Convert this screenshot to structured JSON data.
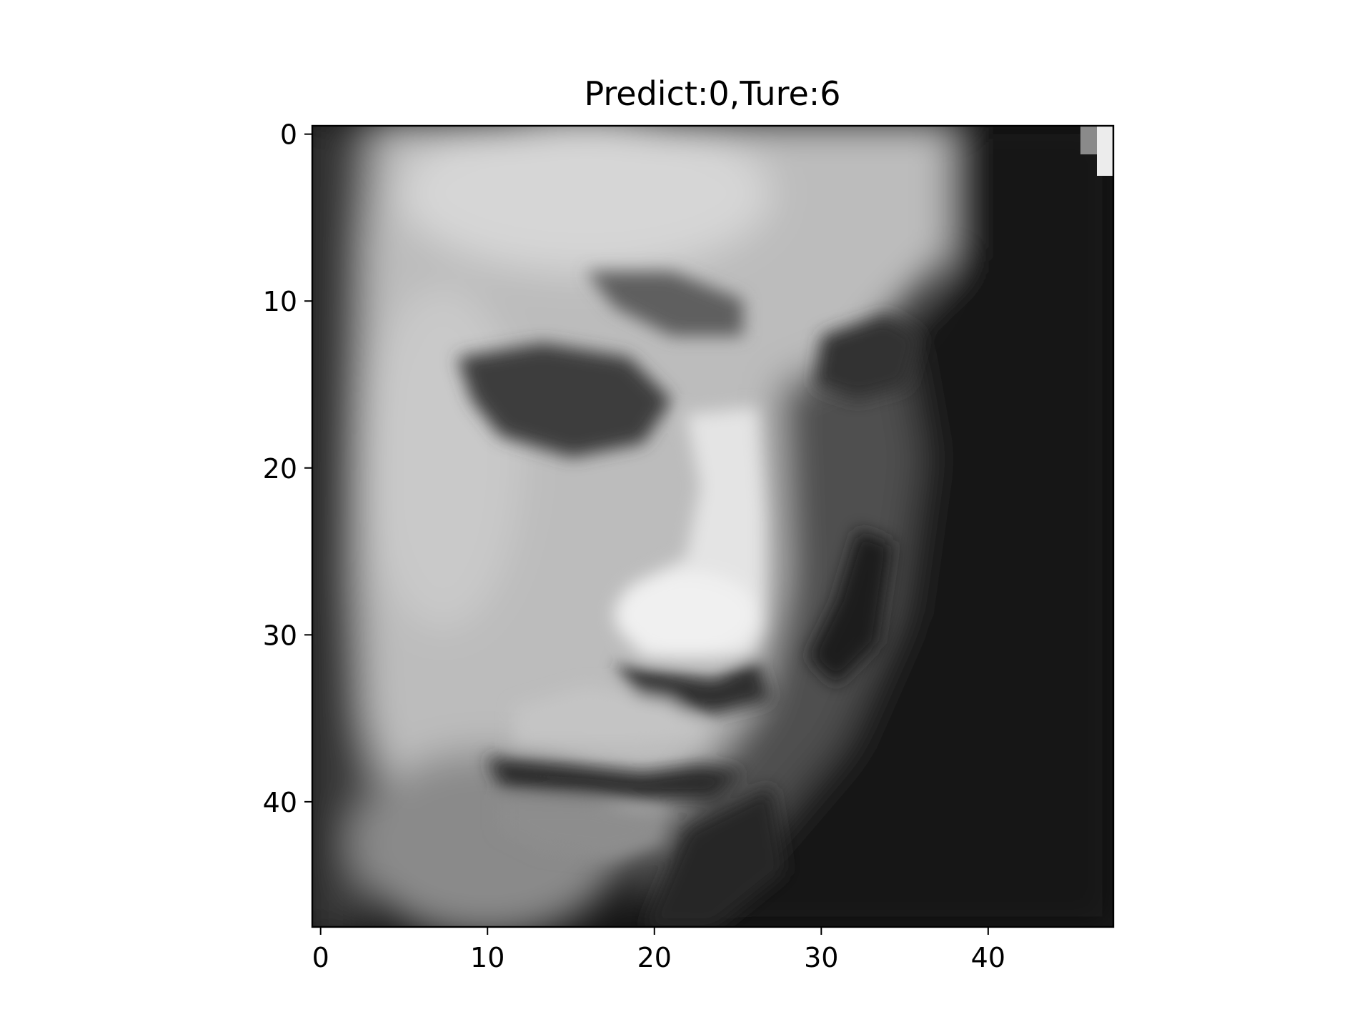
{
  "figure": {
    "title": "Predict:0,Ture:6",
    "colormap": "gray"
  },
  "chart_data": {
    "type": "heatmap",
    "title": "Predict:0,Ture:6",
    "xlabel": "",
    "ylabel": "",
    "image_size": [
      48,
      48
    ],
    "xlim": [
      -0.5,
      47.5
    ],
    "ylim": [
      47.5,
      -0.5
    ],
    "x_ticks": [
      0,
      10,
      20,
      30,
      40
    ],
    "y_ticks": [
      0,
      10,
      20,
      30,
      40
    ],
    "x_tick_labels": [
      "0",
      "10",
      "20",
      "30",
      "40"
    ],
    "y_tick_labels": [
      "0",
      "10",
      "20",
      "30",
      "40"
    ],
    "grid": false,
    "legend": "none",
    "colormap": "gray"
  }
}
